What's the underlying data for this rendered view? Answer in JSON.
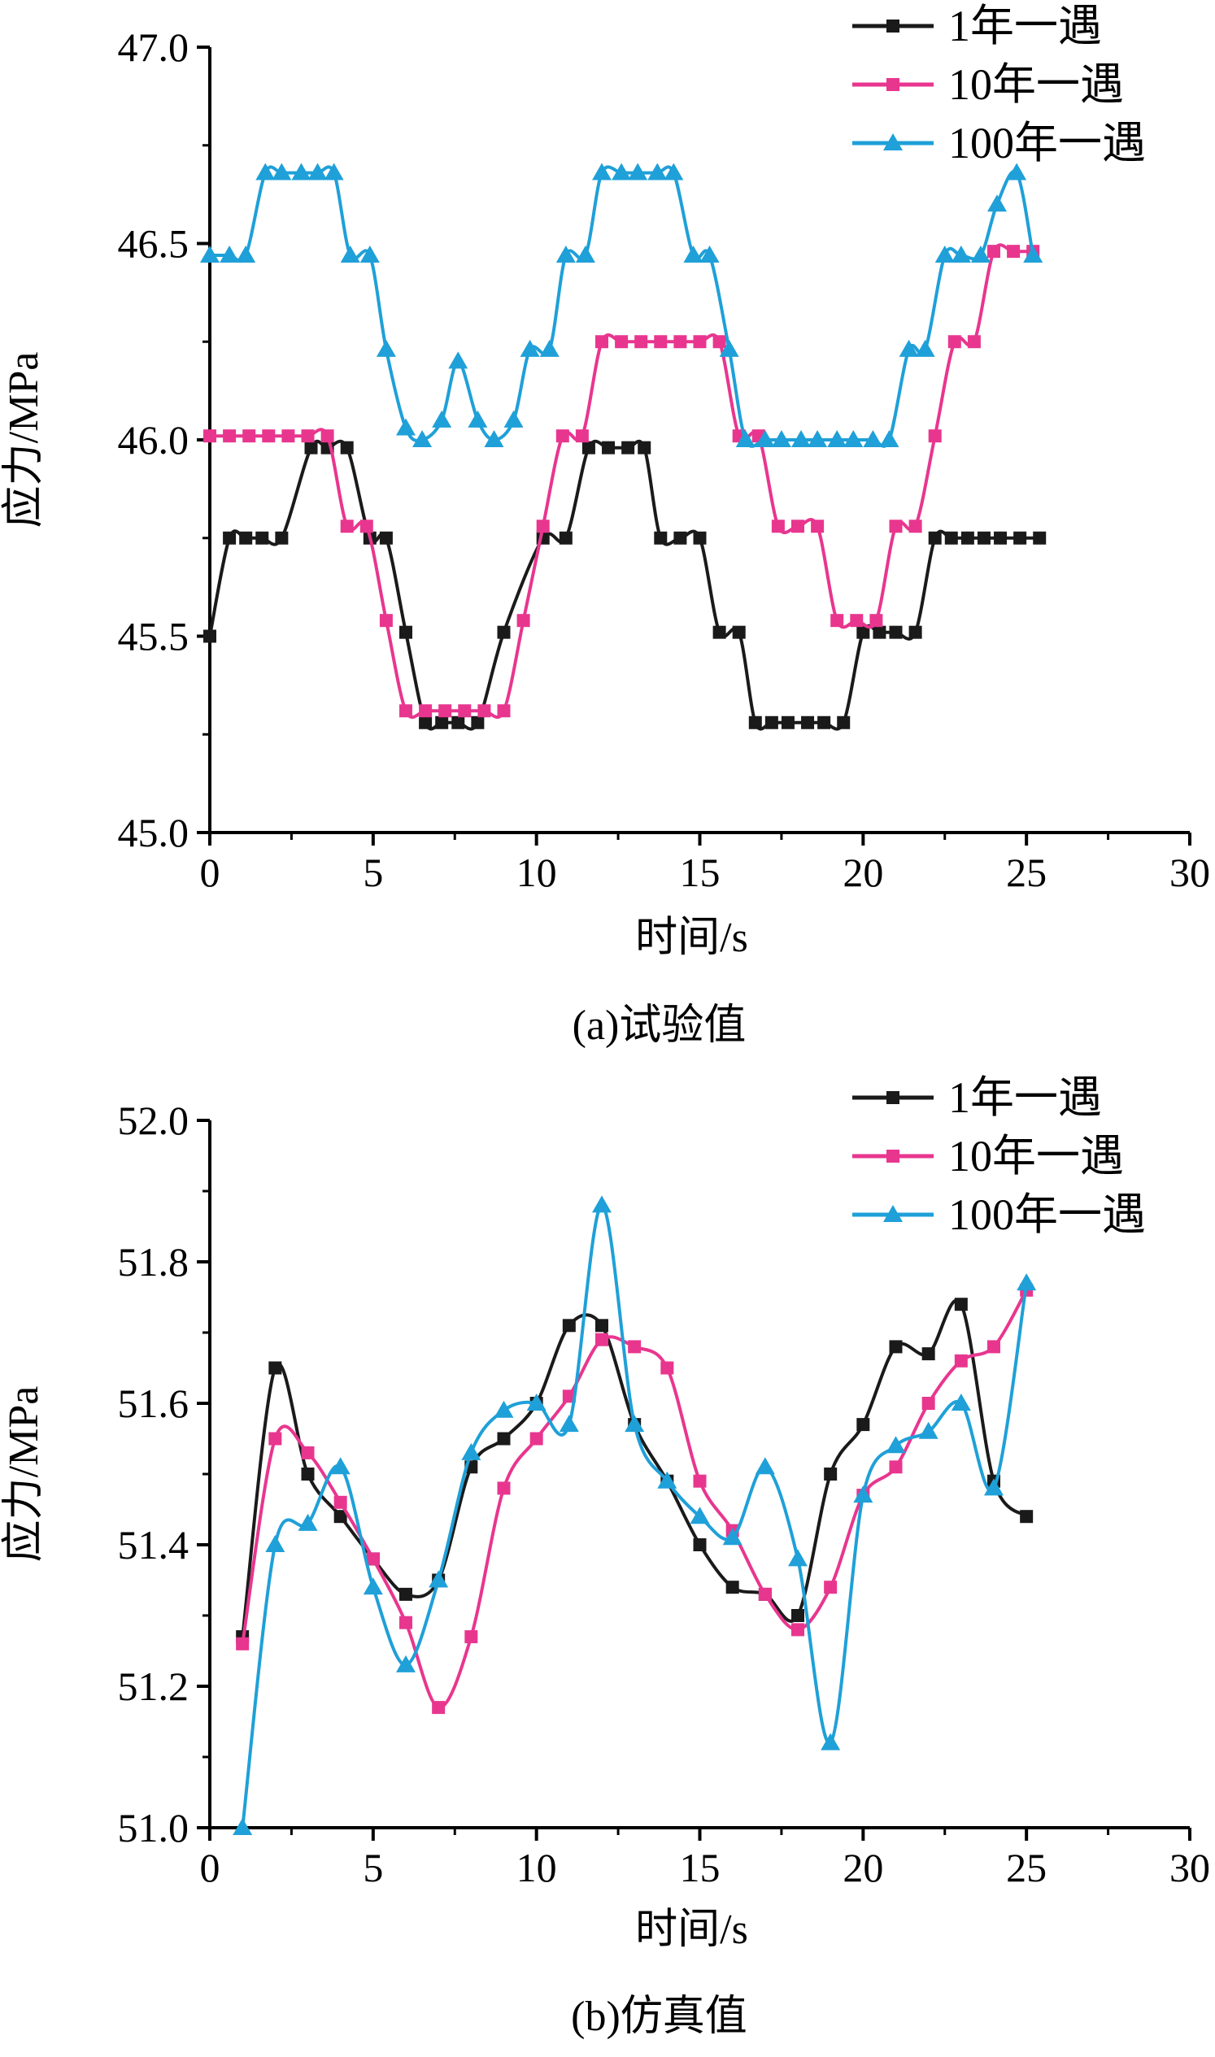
{
  "colors": {
    "black": "#1a1a1a",
    "pink": "#e8368f",
    "cyan": "#1fa0d8"
  },
  "chart_data": [
    {
      "type": "line",
      "caption": "(a)试验值",
      "xlabel": "时间/s",
      "ylabel": "应力/MPa",
      "xlim": [
        0,
        30
      ],
      "ylim": [
        45.0,
        47.0
      ],
      "xticks": [
        0,
        5,
        10,
        15,
        20,
        25,
        30
      ],
      "yticks": [
        45.0,
        45.5,
        46.0,
        46.5,
        47.0
      ],
      "xtick_labels": [
        "0",
        "5",
        "10",
        "15",
        "20",
        "25",
        "30"
      ],
      "ytick_labels": [
        "45.0",
        "45.5",
        "46.0",
        "46.5",
        "47.0"
      ],
      "legend": {
        "placement": "top-right",
        "entries": [
          "1年一遇",
          "10年一遇",
          "100年一遇"
        ]
      },
      "series": [
        {
          "name": "1年一遇",
          "color": "#1a1a1a",
          "marker": "square",
          "x": [
            0,
            0.6,
            1.1,
            1.6,
            2.2,
            3.1,
            3.6,
            4.2,
            4.9,
            5.4,
            6.0,
            6.6,
            7.1,
            7.6,
            8.2,
            9.0,
            10.2,
            10.9,
            11.6,
            12.2,
            12.8,
            13.3,
            13.8,
            14.4,
            15.0,
            15.6,
            16.2,
            16.7,
            17.2,
            17.7,
            18.3,
            18.8,
            19.4,
            20.0,
            20.5,
            21.0,
            21.6,
            22.2,
            22.7,
            23.2,
            23.7,
            24.2,
            24.8,
            25.4
          ],
          "y": [
            45.5,
            45.75,
            45.75,
            45.75,
            45.75,
            45.98,
            45.98,
            45.98,
            45.75,
            45.75,
            45.51,
            45.28,
            45.28,
            45.28,
            45.28,
            45.51,
            45.75,
            45.75,
            45.98,
            45.98,
            45.98,
            45.98,
            45.75,
            45.75,
            45.75,
            45.51,
            45.51,
            45.28,
            45.28,
            45.28,
            45.28,
            45.28,
            45.28,
            45.51,
            45.51,
            45.51,
            45.51,
            45.75,
            45.75,
            45.75,
            45.75,
            45.75,
            45.75,
            45.75
          ]
        },
        {
          "name": "10年一遇",
          "color": "#e8368f",
          "marker": "square",
          "x": [
            0,
            0.6,
            1.2,
            1.8,
            2.4,
            3.0,
            3.6,
            4.2,
            4.8,
            5.4,
            6.0,
            6.6,
            7.2,
            7.8,
            8.4,
            9.0,
            9.6,
            10.2,
            10.8,
            11.4,
            12.0,
            12.6,
            13.2,
            13.8,
            14.4,
            15.0,
            15.6,
            16.2,
            16.8,
            17.4,
            18.0,
            18.6,
            19.2,
            19.8,
            20.4,
            21.0,
            21.6,
            22.2,
            22.8,
            23.4,
            24.0,
            24.6,
            25.2
          ],
          "y": [
            46.01,
            46.01,
            46.01,
            46.01,
            46.01,
            46.01,
            46.01,
            45.78,
            45.78,
            45.54,
            45.31,
            45.31,
            45.31,
            45.31,
            45.31,
            45.31,
            45.54,
            45.78,
            46.01,
            46.01,
            46.25,
            46.25,
            46.25,
            46.25,
            46.25,
            46.25,
            46.25,
            46.01,
            46.01,
            45.78,
            45.78,
            45.78,
            45.54,
            45.54,
            45.54,
            45.78,
            45.78,
            46.01,
            46.25,
            46.25,
            46.48,
            46.48,
            46.48
          ]
        },
        {
          "name": "100年一遇",
          "color": "#1fa0d8",
          "marker": "triangle",
          "x": [
            0,
            0.6,
            1.1,
            1.7,
            2.2,
            2.8,
            3.3,
            3.8,
            4.3,
            4.9,
            5.4,
            6.0,
            6.5,
            7.1,
            7.6,
            8.2,
            8.7,
            9.3,
            9.8,
            10.4,
            10.9,
            11.5,
            12.0,
            12.6,
            13.1,
            13.7,
            14.2,
            14.8,
            15.3,
            15.9,
            16.4,
            17.0,
            17.5,
            18.1,
            18.6,
            19.2,
            19.7,
            20.3,
            20.8,
            21.4,
            21.9,
            22.5,
            23.0,
            23.6,
            24.1,
            24.7,
            25.2
          ],
          "y": [
            46.47,
            46.47,
            46.47,
            46.68,
            46.68,
            46.68,
            46.68,
            46.68,
            46.47,
            46.47,
            46.23,
            46.03,
            46.0,
            46.05,
            46.2,
            46.05,
            46.0,
            46.05,
            46.23,
            46.23,
            46.47,
            46.47,
            46.68,
            46.68,
            46.68,
            46.68,
            46.68,
            46.47,
            46.47,
            46.23,
            46.0,
            46.0,
            46.0,
            46.0,
            46.0,
            46.0,
            46.0,
            46.0,
            46.0,
            46.23,
            46.23,
            46.47,
            46.47,
            46.47,
            46.6,
            46.68,
            46.47
          ]
        }
      ]
    },
    {
      "type": "line",
      "caption": "(b)仿真值",
      "xlabel": "时间/s",
      "ylabel": "应力/MPa",
      "xlim": [
        0,
        30
      ],
      "ylim": [
        51.0,
        52.0
      ],
      "xticks": [
        0,
        5,
        10,
        15,
        20,
        25,
        30
      ],
      "yticks": [
        51.0,
        51.2,
        51.4,
        51.6,
        51.8,
        52.0
      ],
      "xtick_labels": [
        "0",
        "5",
        "10",
        "15",
        "20",
        "25",
        "30"
      ],
      "ytick_labels": [
        "51.0",
        "51.2",
        "51.4",
        "51.6",
        "51.8",
        "52.0"
      ],
      "legend": {
        "placement": "top-right",
        "entries": [
          "1年一遇",
          "10年一遇",
          "100年一遇"
        ]
      },
      "series": [
        {
          "name": "1年一遇",
          "color": "#1a1a1a",
          "marker": "square",
          "x": [
            1,
            2,
            3,
            4,
            5,
            6,
            7,
            8,
            9,
            10,
            11,
            12,
            13,
            14,
            15,
            16,
            17,
            18,
            19,
            20,
            21,
            22,
            23,
            24,
            25
          ],
          "y": [
            51.27,
            51.65,
            51.5,
            51.44,
            51.38,
            51.33,
            51.35,
            51.51,
            51.55,
            51.6,
            51.71,
            51.71,
            51.57,
            51.49,
            51.4,
            51.34,
            51.33,
            51.3,
            51.5,
            51.57,
            51.68,
            51.67,
            51.74,
            51.49,
            51.44
          ]
        },
        {
          "name": "10年一遇",
          "color": "#e8368f",
          "marker": "square",
          "x": [
            1,
            2,
            3,
            4,
            5,
            6,
            7,
            8,
            9,
            10,
            11,
            12,
            13,
            14,
            15,
            16,
            17,
            18,
            19,
            20,
            21,
            22,
            23,
            24,
            25
          ],
          "y": [
            51.26,
            51.55,
            51.53,
            51.46,
            51.38,
            51.29,
            51.17,
            51.27,
            51.48,
            51.55,
            51.61,
            51.69,
            51.68,
            51.65,
            51.49,
            51.42,
            51.33,
            51.28,
            51.34,
            51.47,
            51.51,
            51.6,
            51.66,
            51.68,
            51.76
          ]
        },
        {
          "name": "100年一遇",
          "color": "#1fa0d8",
          "marker": "triangle",
          "x": [
            1,
            2,
            3,
            4,
            5,
            6,
            7,
            8,
            9,
            10,
            11,
            12,
            13,
            14,
            15,
            16,
            17,
            18,
            19,
            20,
            21,
            22,
            23,
            24,
            25
          ],
          "y": [
            51.0,
            51.4,
            51.43,
            51.51,
            51.34,
            51.23,
            51.35,
            51.53,
            51.59,
            51.6,
            51.57,
            51.88,
            51.57,
            51.49,
            51.44,
            51.41,
            51.51,
            51.38,
            51.12,
            51.47,
            51.54,
            51.56,
            51.6,
            51.48,
            51.77
          ]
        }
      ]
    }
  ]
}
